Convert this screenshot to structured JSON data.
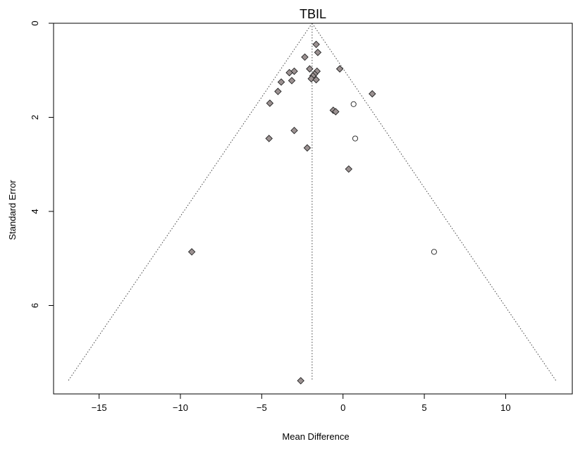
{
  "chart_data": {
    "type": "scatter",
    "title": "TBIL",
    "xlabel": "Mean Difference",
    "ylabel": "Standard Error",
    "xlim": [
      -17.8,
      14.1
    ],
    "ylim": [
      0,
      7.88
    ],
    "y_reversed": true,
    "xticks": [
      -15,
      -10,
      -5,
      0,
      5,
      10
    ],
    "yticks": [
      0,
      2,
      4,
      6
    ],
    "grid": false,
    "summary_estimate": -1.9,
    "funnel_limits": {
      "apex": [
        -1.9,
        0
      ],
      "base_se": 7.6,
      "base_left": -16.9,
      "base_right": 13.1
    },
    "colors": {
      "filled_point": "#9b9191",
      "point_edge": "#222222",
      "funnel_line": "#444444"
    },
    "series": [
      {
        "marker": "diamond-filled",
        "points": [
          [
            -1.65,
            0.45
          ],
          [
            -1.55,
            0.62
          ],
          [
            -2.35,
            0.72
          ],
          [
            -0.2,
            0.97
          ],
          [
            -2.05,
            0.97
          ],
          [
            -1.6,
            1.02
          ],
          [
            -1.75,
            1.08
          ],
          [
            -1.85,
            1.12
          ],
          [
            -1.95,
            1.18
          ],
          [
            -1.65,
            1.2
          ],
          [
            -3.0,
            1.02
          ],
          [
            -3.3,
            1.05
          ],
          [
            -3.15,
            1.22
          ],
          [
            -3.8,
            1.25
          ],
          [
            -4.0,
            1.45
          ],
          [
            1.8,
            1.5
          ],
          [
            -4.5,
            1.7
          ],
          [
            -0.6,
            1.85
          ],
          [
            -0.45,
            1.88
          ],
          [
            -3.0,
            2.28
          ],
          [
            -4.55,
            2.45
          ],
          [
            -2.2,
            2.65
          ],
          [
            0.35,
            3.1
          ],
          [
            -9.3,
            4.86
          ],
          [
            -2.6,
            7.6
          ]
        ]
      },
      {
        "marker": "circle-open",
        "points": [
          [
            0.65,
            1.72
          ],
          [
            0.75,
            2.45
          ],
          [
            5.6,
            4.86
          ]
        ]
      }
    ]
  }
}
